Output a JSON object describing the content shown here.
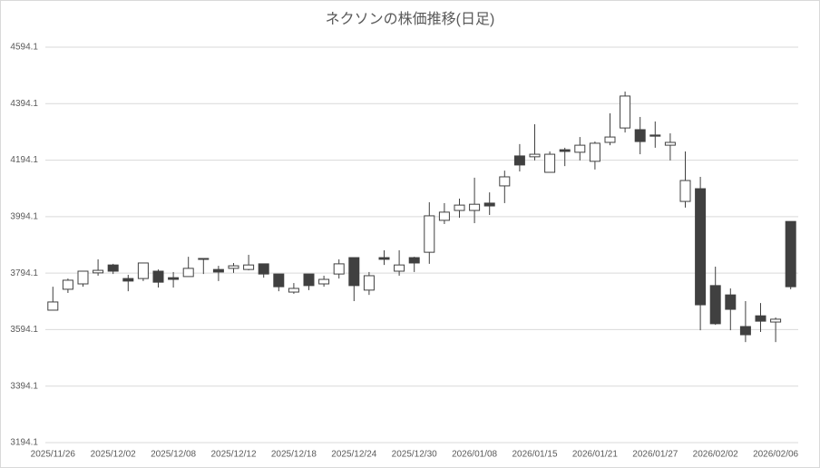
{
  "chart_data": {
    "type": "candlestick",
    "title": "ネクソンの株価推移(日足)",
    "categories": [
      "2025/11/26",
      null,
      null,
      null,
      "2025/12/02",
      null,
      null,
      null,
      "2025/12/08",
      null,
      null,
      null,
      "2025/12/12",
      null,
      null,
      null,
      "2025/12/18",
      null,
      null,
      null,
      "2025/12/24",
      null,
      null,
      null,
      "2025/12/30",
      null,
      null,
      null,
      "2026/01/08",
      null,
      null,
      null,
      "2026/01/15",
      null,
      null,
      null,
      "2026/01/21",
      null,
      null,
      null,
      "2026/01/27",
      null,
      null,
      null,
      "2026/02/02",
      null,
      null,
      null,
      "2026/02/06",
      null
    ],
    "open": [
      3663,
      3737,
      3756,
      3795,
      3823,
      3775,
      3775,
      3801,
      3778,
      3782,
      3846,
      3807,
      3811,
      3807,
      3827,
      3791,
      3727,
      3791,
      3756,
      3791,
      3849,
      3734,
      3849,
      3801,
      3849,
      3868,
      3981,
      4016,
      4016,
      4042,
      4103,
      4209,
      4206,
      4151,
      4231,
      4222,
      4190,
      4257,
      4308,
      4302,
      4283,
      4247,
      4048,
      4093,
      3750,
      3717,
      3605,
      3643,
      3621,
      3977
    ],
    "high": [
      3746,
      3775,
      3801,
      3843,
      3827,
      3788,
      3830,
      3807,
      3798,
      3852,
      3846,
      3820,
      3830,
      3859,
      3827,
      3791,
      3759,
      3791,
      3785,
      3843,
      3849,
      3798,
      3875,
      3875,
      3852,
      4045,
      4042,
      4058,
      4132,
      4080,
      4157,
      4251,
      4321,
      4225,
      4238,
      4276,
      4260,
      4360,
      4437,
      4347,
      4331,
      4289,
      4225,
      4135,
      3817,
      3740,
      3695,
      3688,
      3637,
      3977
    ],
    "low": [
      3663,
      3724,
      3746,
      3785,
      3791,
      3730,
      3766,
      3743,
      3743,
      3782,
      3791,
      3766,
      3795,
      3804,
      3778,
      3730,
      3721,
      3734,
      3746,
      3775,
      3695,
      3717,
      3823,
      3785,
      3798,
      3827,
      3968,
      3990,
      3971,
      4000,
      4042,
      4154,
      4193,
      4151,
      4173,
      4193,
      4161,
      4247,
      4292,
      4215,
      4238,
      4193,
      4026,
      3592,
      3611,
      3592,
      3550,
      3586,
      3550,
      3737
    ],
    "close": [
      3692,
      3769,
      3801,
      3804,
      3801,
      3766,
      3830,
      3762,
      3772,
      3811,
      3843,
      3798,
      3820,
      3823,
      3791,
      3746,
      3740,
      3750,
      3772,
      3827,
      3750,
      3785,
      3843,
      3823,
      3830,
      3997,
      4010,
      4035,
      4038,
      4032,
      4135,
      4177,
      4215,
      4215,
      4225,
      4247,
      4254,
      4276,
      4421,
      4260,
      4279,
      4257,
      4122,
      3682,
      3615,
      3666,
      3576,
      3624,
      3631,
      3746
    ],
    "up_color": "#ffffff",
    "down_color": "#404040",
    "edge_color": "#404040",
    "ylim": [
      3194.1,
      4594.1
    ],
    "yticks": [
      3194.1,
      3394.1,
      3594.1,
      3794.1,
      3994.1,
      4194.1,
      4394.1,
      4594.1
    ],
    "grid": true
  }
}
